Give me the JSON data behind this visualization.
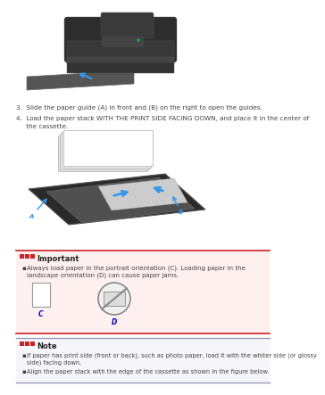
{
  "content_bg": "#ffffff",
  "step3_text": "3.  Slide the paper guide (A) in front and (B) on the right to open the guides.",
  "step4_line1": "4.  Load the paper stack WITH THE PRINT SIDE FACING DOWN, and place it in the center of",
  "step4_line2": "     the cassette.",
  "important_title": "Important",
  "important_bullet": "Always load paper in the portrait orientation (C). Loading paper in the landscape orientation (D) can cause paper jams.",
  "important_bg": "#fff0f0",
  "important_border": "#cc2222",
  "label_c": "C",
  "label_d": "D",
  "note_title": "Note",
  "note_bullet1": "If paper has print side (front or back), such as photo paper, load it with the whiter side (or glossy side) facing down.",
  "note_bullet2": "Align the paper stack with the edge of the cassette as shown in the figure below.",
  "label_color": "#0000bb",
  "icon_color": "#cc2222",
  "text_color": "#444444",
  "note_border": "#9999bb",
  "note_bg": "#f5f5fa"
}
